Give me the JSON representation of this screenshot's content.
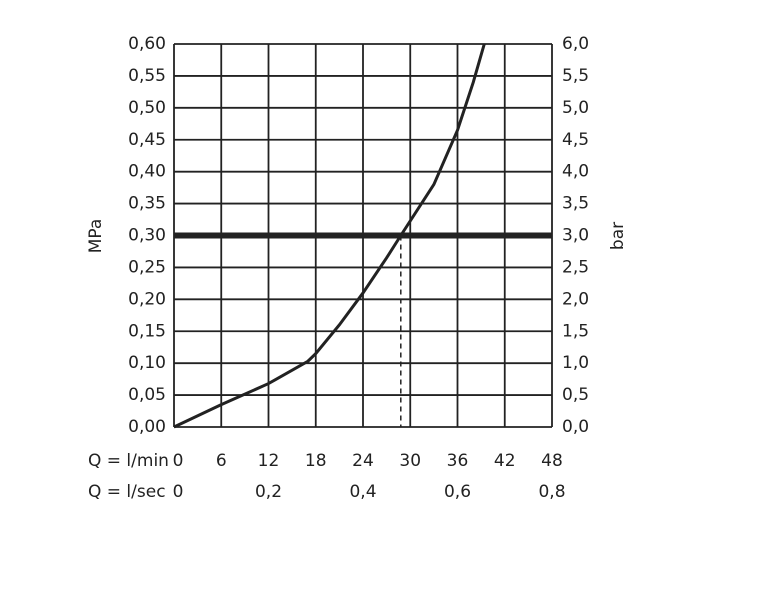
{
  "chart_data": {
    "type": "line",
    "x_label": "Q = l/min",
    "x2_label": "Q = l/sec",
    "y_label": "MPa",
    "y2_label": "bar",
    "x": [
      0,
      6,
      12,
      17,
      18,
      21,
      24,
      27,
      28.8,
      33,
      36,
      38,
      39.4
    ],
    "series": [
      {
        "color": "#222222",
        "values": [
          0,
          0.035,
          0.068,
          0.103,
          0.115,
          0.16,
          0.21,
          0.265,
          0.3,
          0.38,
          0.465,
          0.54,
          0.6
        ]
      }
    ],
    "xlim": [
      0,
      48
    ],
    "xticks": [
      0,
      6,
      12,
      18,
      24,
      30,
      36,
      42,
      48
    ],
    "x2lim": [
      0,
      0.8
    ],
    "x2ticks": [
      0,
      {
        "value": 0.2,
        "label": "0,2"
      },
      {
        "value": 0.4,
        "label": "0,4"
      },
      {
        "value": 0.6,
        "label": "0,6"
      },
      {
        "value": 0.8,
        "label": "0,8"
      }
    ],
    "ylim": [
      0,
      0.6
    ],
    "yticks": [
      {
        "value": 0,
        "label": "0,00"
      },
      {
        "value": 0.05,
        "label": "0,05"
      },
      {
        "value": 0.1,
        "label": "0,10"
      },
      {
        "value": 0.15,
        "label": "0,15"
      },
      {
        "value": 0.2,
        "label": "0,20"
      },
      {
        "value": 0.25,
        "label": "0,25"
      },
      {
        "value": 0.3,
        "label": "0,30"
      },
      {
        "value": 0.35,
        "label": "0,35"
      },
      {
        "value": 0.4,
        "label": "0,40"
      },
      {
        "value": 0.45,
        "label": "0,45"
      },
      {
        "value": 0.5,
        "label": "0,50"
      },
      {
        "value": 0.55,
        "label": "0,55"
      },
      {
        "value": 0.6,
        "label": "0,60"
      }
    ],
    "y2lim": [
      0,
      6
    ],
    "y2ticks": [
      {
        "value": 0,
        "label": "0,0"
      },
      {
        "value": 0.5,
        "label": "0,5"
      },
      {
        "value": 1,
        "label": "1,0"
      },
      {
        "value": 1.5,
        "label": "1,5"
      },
      {
        "value": 2,
        "label": "2,0"
      },
      {
        "value": 2.5,
        "label": "2,5"
      },
      {
        "value": 3,
        "label": "3,0"
      },
      {
        "value": 3.5,
        "label": "3,5"
      },
      {
        "value": 4,
        "label": "4,0"
      },
      {
        "value": 4.5,
        "label": "4,5"
      },
      {
        "value": 5,
        "label": "5,0"
      },
      {
        "value": 5.5,
        "label": "5,5"
      },
      {
        "value": 6,
        "label": "6,0"
      }
    ],
    "reference_y": 0.3,
    "reference_x": 28.8,
    "grid": true
  }
}
